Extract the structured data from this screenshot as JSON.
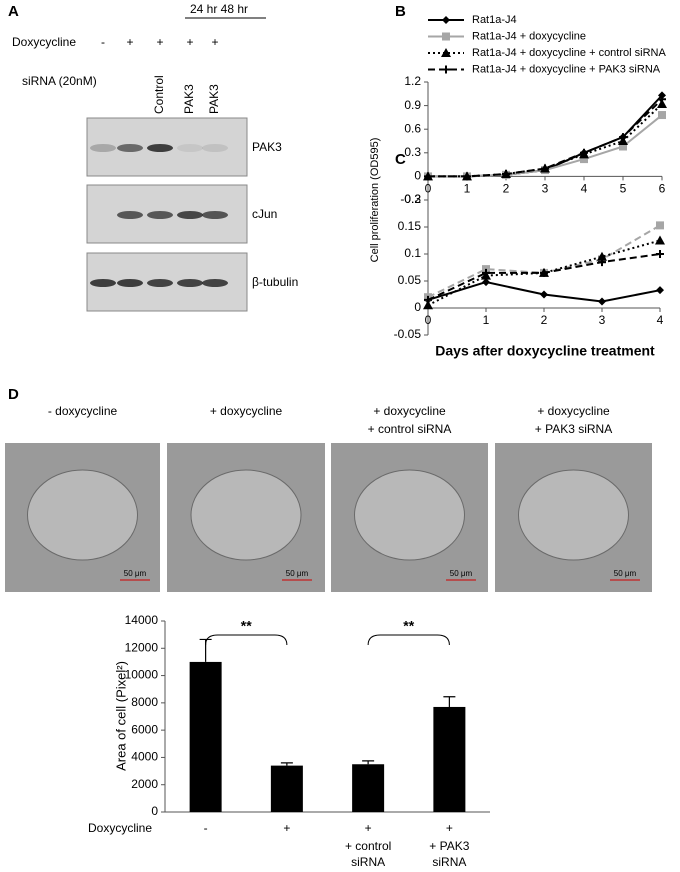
{
  "panel_a": {
    "label": "A",
    "time_label": "24 hr  48 hr",
    "dox_label": "Doxycycline",
    "dox_signs": [
      "-",
      "+",
      "+",
      "+",
      "+"
    ],
    "sirna_label": "siRNA (20nM)",
    "sirna_lanes": [
      "Control",
      "PAK3",
      "PAK3"
    ],
    "blots": [
      "PAK3",
      "cJun",
      "β-tubulin"
    ]
  },
  "panel_labels": {
    "b": "B",
    "c": "C",
    "d": "D"
  },
  "panel_d_images": {
    "conditions": [
      [
        "- doxycycline"
      ],
      [
        "+ doxycycline"
      ],
      [
        "+ doxycycline",
        "+ control siRNA"
      ],
      [
        "+ doxycycline",
        "+ PAK3 siRNA"
      ]
    ],
    "scale_bar": "50 μm"
  },
  "chart_data": [
    {
      "type": "line",
      "x": [
        0,
        1,
        2,
        3,
        4,
        5,
        6
      ],
      "xlim": [
        0,
        6
      ],
      "xticks": [
        0,
        1,
        2,
        3,
        4,
        5,
        6
      ],
      "ylim": [
        -0.3,
        1.2
      ],
      "yticks": [
        -0.3,
        0,
        0.3,
        0.6,
        0.9,
        1.2
      ],
      "legend": "top",
      "series": [
        {
          "name": "Rat1a-J4",
          "color": "#000000",
          "marker": "diamond",
          "dash": "solid",
          "values": [
            0,
            0,
            0.02,
            0.08,
            0.3,
            0.5,
            1.03
          ]
        },
        {
          "name": "Rat1a-J4 + doxycycline",
          "color": "#a6a6a6",
          "marker": "square",
          "dash": "solid",
          "values": [
            0,
            0,
            0.02,
            0.08,
            0.22,
            0.38,
            0.78
          ]
        },
        {
          "name": "Rat1a-J4 + doxycycline + control siRNA",
          "color": "#000000",
          "marker": "triangle",
          "dash": "dot",
          "values": [
            0,
            0,
            0.03,
            0.1,
            0.28,
            0.45,
            0.92
          ]
        },
        {
          "name": "Rat1a-J4 + doxycycline + PAK3 siRNA",
          "color": "#000000",
          "marker": "cross",
          "dash": "dash",
          "values": [
            0,
            0,
            0.03,
            0.1,
            0.3,
            0.5,
            0.98
          ]
        }
      ]
    },
    {
      "type": "line",
      "x": [
        0,
        1,
        2,
        3,
        4
      ],
      "xlim": [
        0,
        4
      ],
      "xticks": [
        0,
        1,
        2,
        3,
        4
      ],
      "ylim": [
        -0.05,
        0.2
      ],
      "yticks": [
        -0.05,
        0,
        0.05,
        0.1,
        0.15,
        0.2
      ],
      "ylabel": "Cell proliferation (OD595)",
      "xlabel": "Days after doxycycline treatment",
      "series": [
        {
          "color": "#000000",
          "marker": "diamond",
          "dash": "solid",
          "values": [
            0.015,
            0.048,
            0.025,
            0.012,
            0.033
          ]
        },
        {
          "color": "#a6a6a6",
          "marker": "square",
          "dash": "dash",
          "values": [
            0.02,
            0.072,
            0.065,
            0.09,
            0.153
          ]
        },
        {
          "color": "#000000",
          "marker": "triangle",
          "dash": "dot",
          "values": [
            0.005,
            0.06,
            0.065,
            0.095,
            0.125
          ]
        },
        {
          "color": "#000000",
          "marker": "cross",
          "dash": "dash",
          "values": [
            0.015,
            0.065,
            0.065,
            0.085,
            0.1
          ]
        }
      ]
    },
    {
      "type": "bar",
      "ylabel": "Area of cell (Pixel²)",
      "row_label": "Doxycycline",
      "categories": [
        "-",
        "+",
        "+",
        "+"
      ],
      "category_sublabels": [
        null,
        null,
        [
          "+ control",
          "siRNA"
        ],
        [
          "+ PAK3",
          "siRNA"
        ]
      ],
      "values": [
        11000,
        3400,
        3500,
        7700
      ],
      "errors": [
        1650,
        200,
        250,
        750
      ],
      "color": "#000000",
      "ylim": [
        0,
        14000
      ],
      "yticks": [
        0,
        2000,
        4000,
        6000,
        8000,
        10000,
        12000,
        14000
      ],
      "annotations": [
        {
          "text": "**",
          "between": [
            0,
            1
          ]
        },
        {
          "text": "**",
          "between": [
            2,
            3
          ]
        }
      ]
    }
  ]
}
